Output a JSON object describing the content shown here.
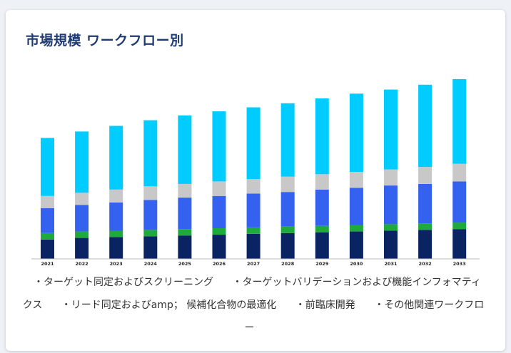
{
  "title": "市場規模 ワークフロー別",
  "legend": [
    "・ターゲット同定およびスクリーニング",
    "・ターゲットバリデーションおよび機能インフォマティクス",
    "・リード同定およびamp； 候補化合物の最適化",
    "・前臨床開発",
    "・その他関連ワークフロー"
  ],
  "chart_data": {
    "type": "bar",
    "stacked": true,
    "categories": [
      "2021",
      "2022",
      "2023",
      "2024",
      "2025",
      "2026",
      "2027",
      "2028",
      "2029",
      "2030",
      "2031",
      "2032",
      "2033"
    ],
    "series": [
      {
        "name": "ターゲット同定およびスクリーニング",
        "color": "#0a2463",
        "values": [
          24,
          26,
          27,
          28,
          29,
          30,
          31,
          32,
          33,
          34,
          35,
          36,
          37
        ]
      },
      {
        "name": "ターゲットバリデーションおよび機能インフォマティクス",
        "color": "#1faa3c",
        "values": [
          8,
          8,
          8,
          8,
          8,
          8,
          8,
          8,
          8,
          8,
          8,
          8,
          8
        ]
      },
      {
        "name": "リード同定およびamp； 候補化合物の最適化",
        "color": "#3461f0",
        "values": [
          31,
          33,
          35,
          37,
          39,
          40,
          42,
          43,
          45,
          46,
          48,
          49,
          51
        ]
      },
      {
        "name": "前臨床開発",
        "color": "#c8c8c8",
        "values": [
          15,
          15,
          16,
          17,
          17,
          18,
          18,
          19,
          19,
          20,
          20,
          21,
          22
        ]
      },
      {
        "name": "その他関連ワークフロー",
        "color": "#00ccff",
        "values": [
          72,
          76,
          79,
          82,
          85,
          87,
          89,
          91,
          94,
          97,
          99,
          102,
          105
        ]
      }
    ],
    "ylim": [
      0,
      230
    ],
    "grid": false,
    "legend_position": "bottom"
  }
}
